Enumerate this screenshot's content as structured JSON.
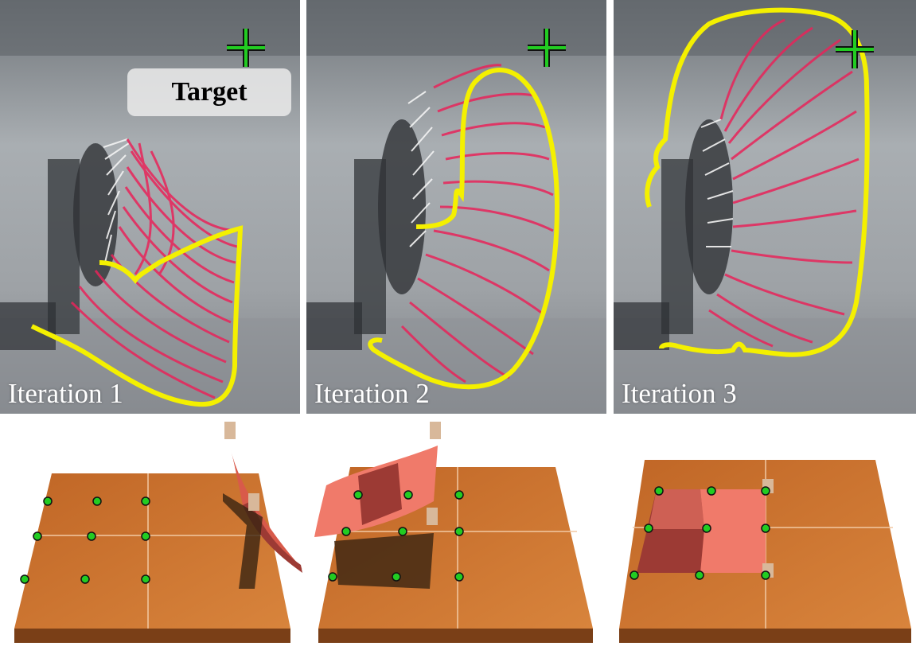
{
  "panels": [
    {
      "label": "Iteration 1"
    },
    {
      "label": "Iteration 2"
    },
    {
      "label": "Iteration 3"
    }
  ],
  "target_label": "Target",
  "colors": {
    "outline": "#f4f000",
    "target_marker": "#22cc22",
    "strands": "#e8245a",
    "table": "#c8702a",
    "cloth_light": "#f07a6a",
    "cloth_dark": "#9c3a34",
    "grasp_points": "#22cc22"
  }
}
